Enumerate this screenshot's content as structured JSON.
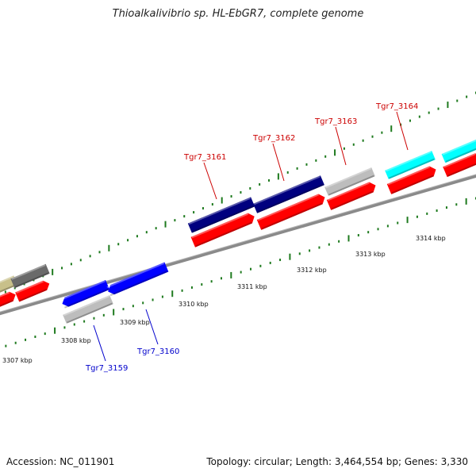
{
  "title": "Thioalkalivibrio sp. HL-EbGR7, complete genome",
  "footer": {
    "accession": "Accession: NC_011901",
    "summary": "Topology: circular; Length: 3,464,554 bp; Genes: 3,330"
  },
  "kbp_labels": [
    "3307 kbp",
    "3308 kbp",
    "3309 kbp",
    "3310 kbp",
    "3311 kbp",
    "3312 kbp",
    "3313 kbp",
    "3314 kbp"
  ],
  "gene_labels": {
    "top": [
      "Tgr7_3161",
      "Tgr7_3162",
      "Tgr7_3163",
      "Tgr7_3164"
    ],
    "bottom": [
      "Tgr7_3159",
      "Tgr7_3160"
    ]
  },
  "colors": {
    "backbone": "#8a8a8a",
    "cds_red": "#ff0000",
    "navy": "#00007f",
    "blue": "#0000ff",
    "gray": "#bdbdbd",
    "cyan": "#00ffff",
    "khaki": "#c8c08a",
    "darkgray": "#6a6a6a",
    "tick_green": "#1e7a1e",
    "label_red": "#cc0000",
    "label_blue": "#0000cc"
  }
}
